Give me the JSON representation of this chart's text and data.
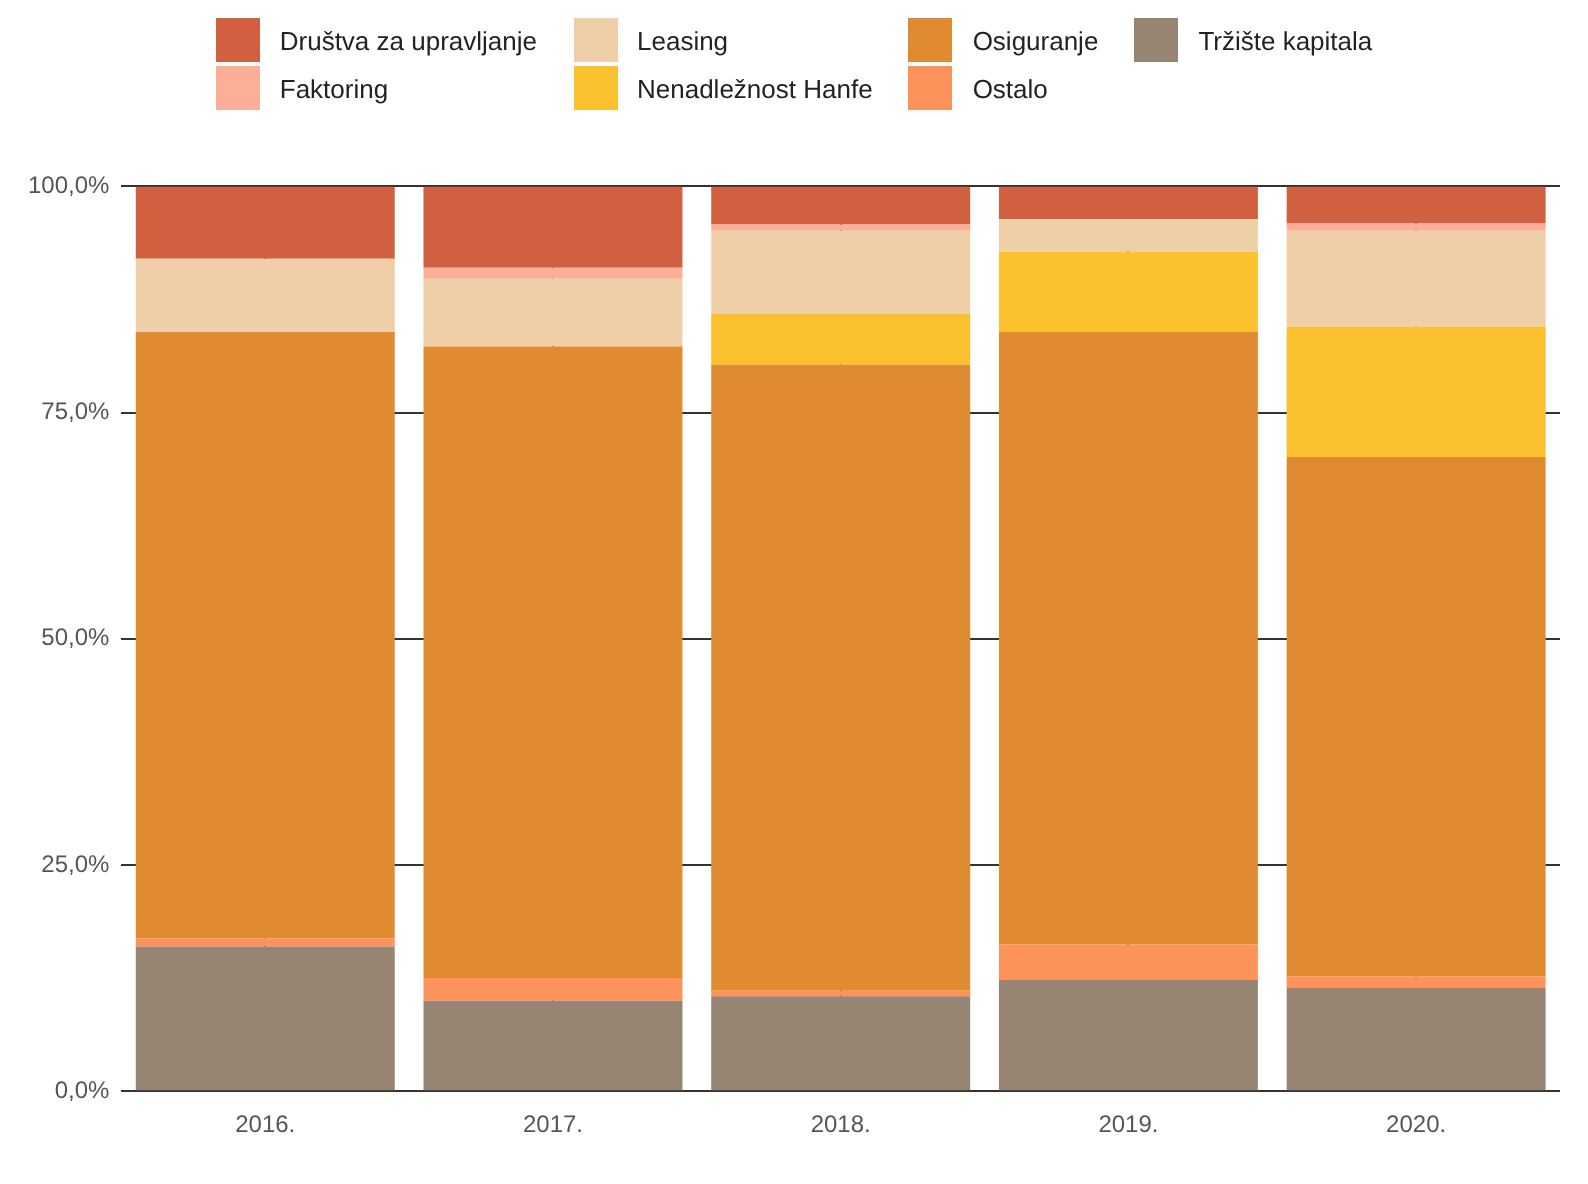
{
  "chart_data": {
    "type": "bar",
    "stacked": true,
    "categories": [
      "2016.",
      "2017.",
      "2018.",
      "2019.",
      "2020."
    ],
    "series": [
      {
        "name": "Tržište kapitala",
        "color": "#958572",
        "values": [
          16.0,
          10.0,
          10.5,
          12.3,
          11.4
        ]
      },
      {
        "name": "Ostalo",
        "color": "#fd935a",
        "values": [
          0.9,
          2.5,
          0.6,
          3.9,
          1.3
        ]
      },
      {
        "name": "Osiguranje",
        "color": "#e08a32",
        "values": [
          67.0,
          69.8,
          69.2,
          67.7,
          57.4
        ]
      },
      {
        "name": "Nenadležnost Hanfe",
        "color": "#fcc12f",
        "values": [
          0,
          0,
          5.6,
          8.9,
          14.4
        ]
      },
      {
        "name": "Leasing",
        "color": "#efcfa8",
        "values": [
          8.1,
          7.5,
          9.2,
          3.6,
          10.6
        ]
      },
      {
        "name": "Faktoring",
        "color": "#fcae96",
        "values": [
          0,
          1.2,
          0.7,
          0,
          0.8
        ]
      },
      {
        "name": "Društva za upravljanje",
        "color": "#d0603f",
        "values": [
          8.0,
          9.0,
          4.2,
          3.6,
          4.1
        ]
      }
    ],
    "ylim": [
      0,
      100
    ],
    "yticks": [
      {
        "value": 0,
        "label": "0,0%"
      },
      {
        "value": 25,
        "label": "25,0%"
      },
      {
        "value": 50,
        "label": "50,0%"
      },
      {
        "value": 75,
        "label": "75,0%"
      },
      {
        "value": 100,
        "label": "100,0%"
      }
    ],
    "grid": true,
    "legend": "top"
  }
}
